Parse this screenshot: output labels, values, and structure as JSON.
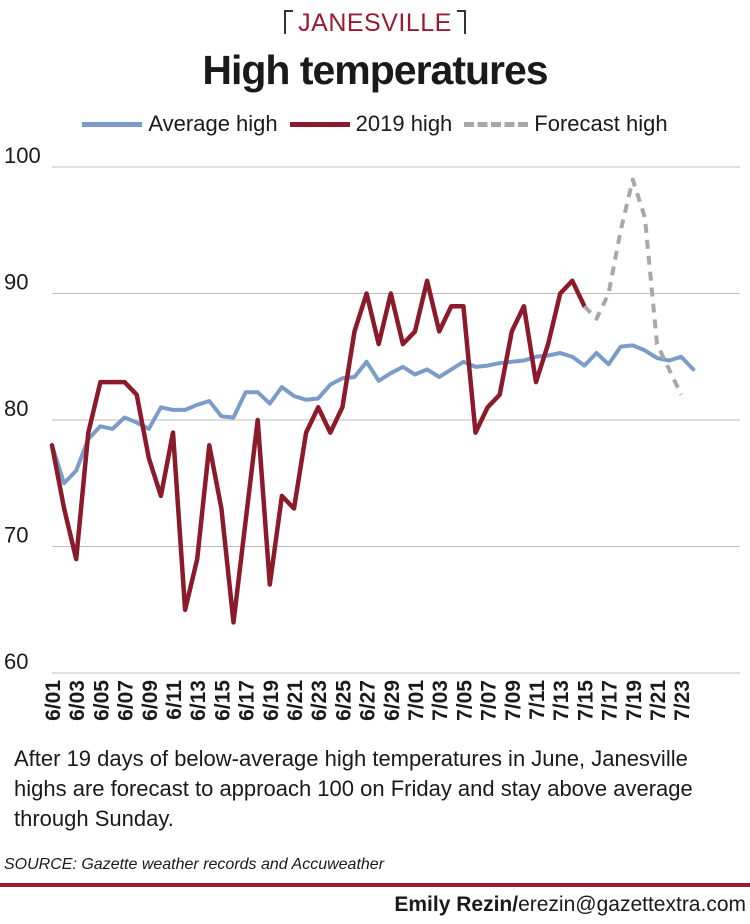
{
  "header": {
    "kicker": "JANESVILLE",
    "title": "High temperatures"
  },
  "legend": [
    {
      "label": "Average high",
      "color": "#7b9cc9",
      "style": "solid"
    },
    {
      "label": "2019 high",
      "color": "#8b1a2b",
      "style": "solid"
    },
    {
      "label": "Forecast high",
      "color": "#a8a8a8",
      "style": "dashed"
    }
  ],
  "chart_data": {
    "type": "line",
    "ylim": [
      60,
      100
    ],
    "yticks": [
      60,
      70,
      80,
      90,
      100
    ],
    "xtick_labels": [
      "6/01",
      "6/03",
      "6/05",
      "6/07",
      "6/09",
      "6/11",
      "6/13",
      "6/15",
      "6/17",
      "6/19",
      "6/21",
      "6/23",
      "6/25",
      "6/27",
      "6/29",
      "7/01",
      "7/03",
      "7/05",
      "7/07",
      "7/09",
      "7/11",
      "7/13",
      "7/15",
      "7/17",
      "7/19",
      "7/21",
      "7/23"
    ],
    "grid": "horizontal",
    "legend_position": "top",
    "series": [
      {
        "name": "Average high",
        "color": "#7b9cc9",
        "start_day": 0,
        "values": [
          78,
          75,
          76,
          78.5,
          79.5,
          79.3,
          80.2,
          79.8,
          79.3,
          81,
          80.8,
          80.8,
          81.2,
          81.5,
          80.3,
          80.2,
          82.2,
          82.2,
          81.3,
          82.6,
          81.9,
          81.6,
          81.7,
          82.8,
          83.3,
          83.4,
          84.6,
          83.1,
          83.7,
          84.2,
          83.6,
          84,
          83.4,
          84,
          84.6,
          84.2,
          84.3,
          84.5,
          84.6,
          84.7,
          85,
          85.1,
          85.3,
          85,
          84.3,
          85.3,
          84.4,
          85.8,
          85.9,
          85.5,
          84.9,
          84.7,
          85,
          84
        ]
      },
      {
        "name": "2019 high",
        "color": "#8b1a2b",
        "start_day": 0,
        "values": [
          78,
          73,
          69,
          79,
          83,
          83,
          83,
          82,
          77,
          74,
          79,
          65,
          69,
          78,
          73,
          64,
          72,
          80,
          67,
          74,
          73,
          79,
          81,
          79,
          81,
          87,
          90,
          86,
          90,
          86,
          87,
          91,
          87,
          89,
          89,
          79,
          81,
          82,
          87,
          89,
          83,
          86,
          90,
          91,
          89
        ]
      },
      {
        "name": "Forecast high",
        "color": "#a8a8a8",
        "start_day": 44,
        "values": [
          89,
          88,
          90,
          95,
          99,
          96,
          86,
          84,
          82
        ]
      }
    ]
  },
  "caption": "After 19 days of below-average high temperatures in June, Janesville highs are forecast to approach 100 on Friday and stay above average through Sunday.",
  "source": "SOURCE: Gazette weather records and Accuweather",
  "credit": {
    "name": "Emily Rezin/",
    "email": "erezin@gazettextra.com"
  }
}
